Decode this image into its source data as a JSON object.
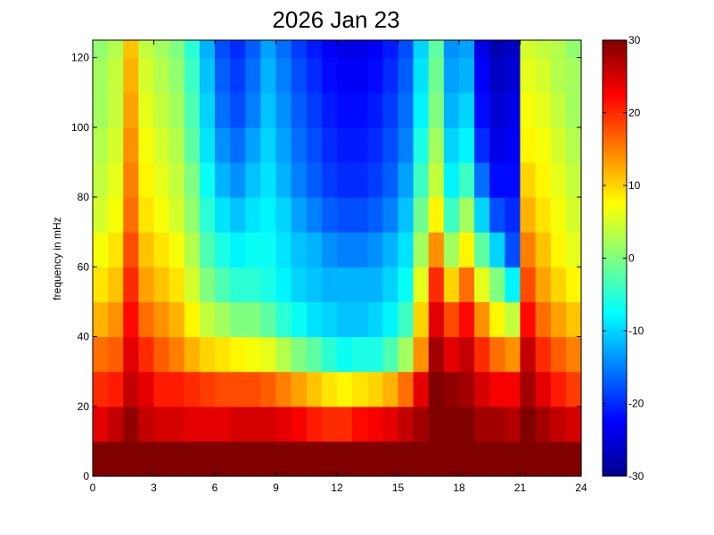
{
  "chart_data": {
    "type": "heatmap",
    "title": "2026 Jan 23",
    "xlabel": "",
    "ylabel": "frequency in mHz",
    "xlim": [
      0,
      24
    ],
    "ylim": [
      0,
      125
    ],
    "x_ticks": [
      "0",
      "3",
      "6",
      "9",
      "12",
      "15",
      "18",
      "21",
      "24"
    ],
    "y_ticks": [
      "0",
      "20",
      "40",
      "60",
      "80",
      "100",
      "120"
    ],
    "colorbar": {
      "colormap": "jet",
      "clim": [
        -30,
        30
      ],
      "ticks": [
        "30",
        "20",
        "10",
        "0",
        "-10",
        "-20",
        "-30"
      ]
    },
    "hour_bins": [
      0,
      0.75,
      1.5,
      2.25,
      3,
      3.75,
      4.5,
      5.25,
      6,
      6.75,
      7.5,
      8.25,
      9,
      9.75,
      10.5,
      11.25,
      12,
      12.75,
      13.5,
      14.25,
      15,
      15.75,
      16.5,
      17.25,
      18,
      18.75,
      19.5,
      20.25,
      21,
      21.75,
      22.5,
      23.25
    ],
    "freq_bins_mHz": [
      0,
      10,
      20,
      30,
      40,
      50,
      60,
      70,
      80,
      90,
      100,
      110,
      120
    ],
    "values_dB": [
      [
        30,
        30,
        30,
        30,
        30,
        30,
        30,
        30,
        30,
        30,
        30,
        30,
        30,
        30,
        30,
        30,
        30,
        30,
        30,
        30,
        30,
        30,
        30,
        30,
        30,
        30,
        30,
        30,
        30,
        30,
        30,
        30
      ],
      [
        24,
        26,
        29,
        26,
        25,
        25,
        24,
        24,
        24,
        25,
        25,
        25,
        24,
        23,
        21,
        20,
        20,
        22,
        23,
        24,
        26,
        28,
        30,
        30,
        30,
        28,
        28,
        27,
        30,
        28,
        26,
        25
      ],
      [
        20,
        21,
        26,
        24,
        21,
        21,
        20,
        19,
        18,
        18,
        18,
        17,
        15,
        13,
        11,
        9,
        8,
        9,
        10,
        12,
        16,
        24,
        30,
        29,
        28,
        25,
        23,
        23,
        28,
        24,
        21,
        19
      ],
      [
        16,
        17,
        24,
        20,
        17,
        15,
        12,
        10,
        9,
        8,
        7,
        6,
        3,
        0,
        -2,
        -5,
        -7,
        -6,
        -6,
        -3,
        2,
        14,
        28,
        24,
        26,
        20,
        16,
        14,
        26,
        20,
        17,
        15
      ],
      [
        12,
        14,
        22,
        16,
        14,
        12,
        8,
        4,
        2,
        0,
        0,
        -2,
        -5,
        -7,
        -9,
        -10,
        -11,
        -11,
        -10,
        -8,
        -4,
        10,
        24,
        18,
        22,
        14,
        8,
        4,
        22,
        16,
        13,
        11
      ],
      [
        9,
        11,
        20,
        13,
        11,
        9,
        5,
        0,
        -3,
        -5,
        -5,
        -6,
        -8,
        -10,
        -11,
        -12,
        -12,
        -12,
        -12,
        -10,
        -7,
        6,
        20,
        10,
        16,
        6,
        0,
        -8,
        18,
        13,
        10,
        8
      ],
      [
        7,
        9,
        18,
        11,
        9,
        7,
        3,
        -3,
        -6,
        -8,
        -7,
        -7,
        -9,
        -11,
        -12,
        -14,
        -15,
        -15,
        -14,
        -12,
        -9,
        2,
        14,
        2,
        8,
        -2,
        -10,
        -18,
        15,
        11,
        8,
        6
      ],
      [
        5,
        7,
        16,
        9,
        7,
        5,
        1,
        -5,
        -9,
        -11,
        -9,
        -8,
        -10,
        -13,
        -15,
        -17,
        -18,
        -18,
        -17,
        -15,
        -11,
        -1,
        8,
        -4,
        2,
        -10,
        -18,
        -20,
        12,
        9,
        7,
        5
      ],
      [
        4,
        6,
        15,
        8,
        6,
        4,
        0,
        -7,
        -12,
        -14,
        -11,
        -9,
        -12,
        -15,
        -17,
        -19,
        -20,
        -20,
        -19,
        -17,
        -13,
        -4,
        4,
        -8,
        -4,
        -16,
        -22,
        -22,
        10,
        8,
        6,
        4
      ],
      [
        3,
        5,
        14,
        7,
        5,
        3,
        -2,
        -9,
        -14,
        -16,
        -13,
        -10,
        -13,
        -16,
        -18,
        -20,
        -21,
        -21,
        -20,
        -18,
        -15,
        -6,
        2,
        -10,
        -8,
        -20,
        -24,
        -23,
        8,
        7,
        5,
        3
      ],
      [
        2,
        4,
        13,
        6,
        4,
        2,
        -3,
        -10,
        -16,
        -18,
        -15,
        -11,
        -14,
        -17,
        -19,
        -21,
        -22,
        -22,
        -21,
        -19,
        -16,
        -8,
        0,
        -12,
        -10,
        -22,
        -25,
        -24,
        7,
        6,
        4,
        2
      ],
      [
        2,
        4,
        12,
        5,
        3,
        1,
        -4,
        -11,
        -17,
        -19,
        -16,
        -12,
        -15,
        -18,
        -20,
        -22,
        -23,
        -23,
        -22,
        -20,
        -17,
        -9,
        -1,
        -13,
        -12,
        -23,
        -26,
        -25,
        6,
        5,
        3,
        2
      ],
      [
        1,
        3,
        11,
        4,
        2,
        0,
        -5,
        -12,
        -18,
        -20,
        -17,
        -13,
        -16,
        -19,
        -21,
        -23,
        -24,
        -24,
        -23,
        -21,
        -18,
        -10,
        -2,
        -14,
        -13,
        -24,
        -27,
        -26,
        5,
        4,
        3,
        1
      ]
    ]
  }
}
